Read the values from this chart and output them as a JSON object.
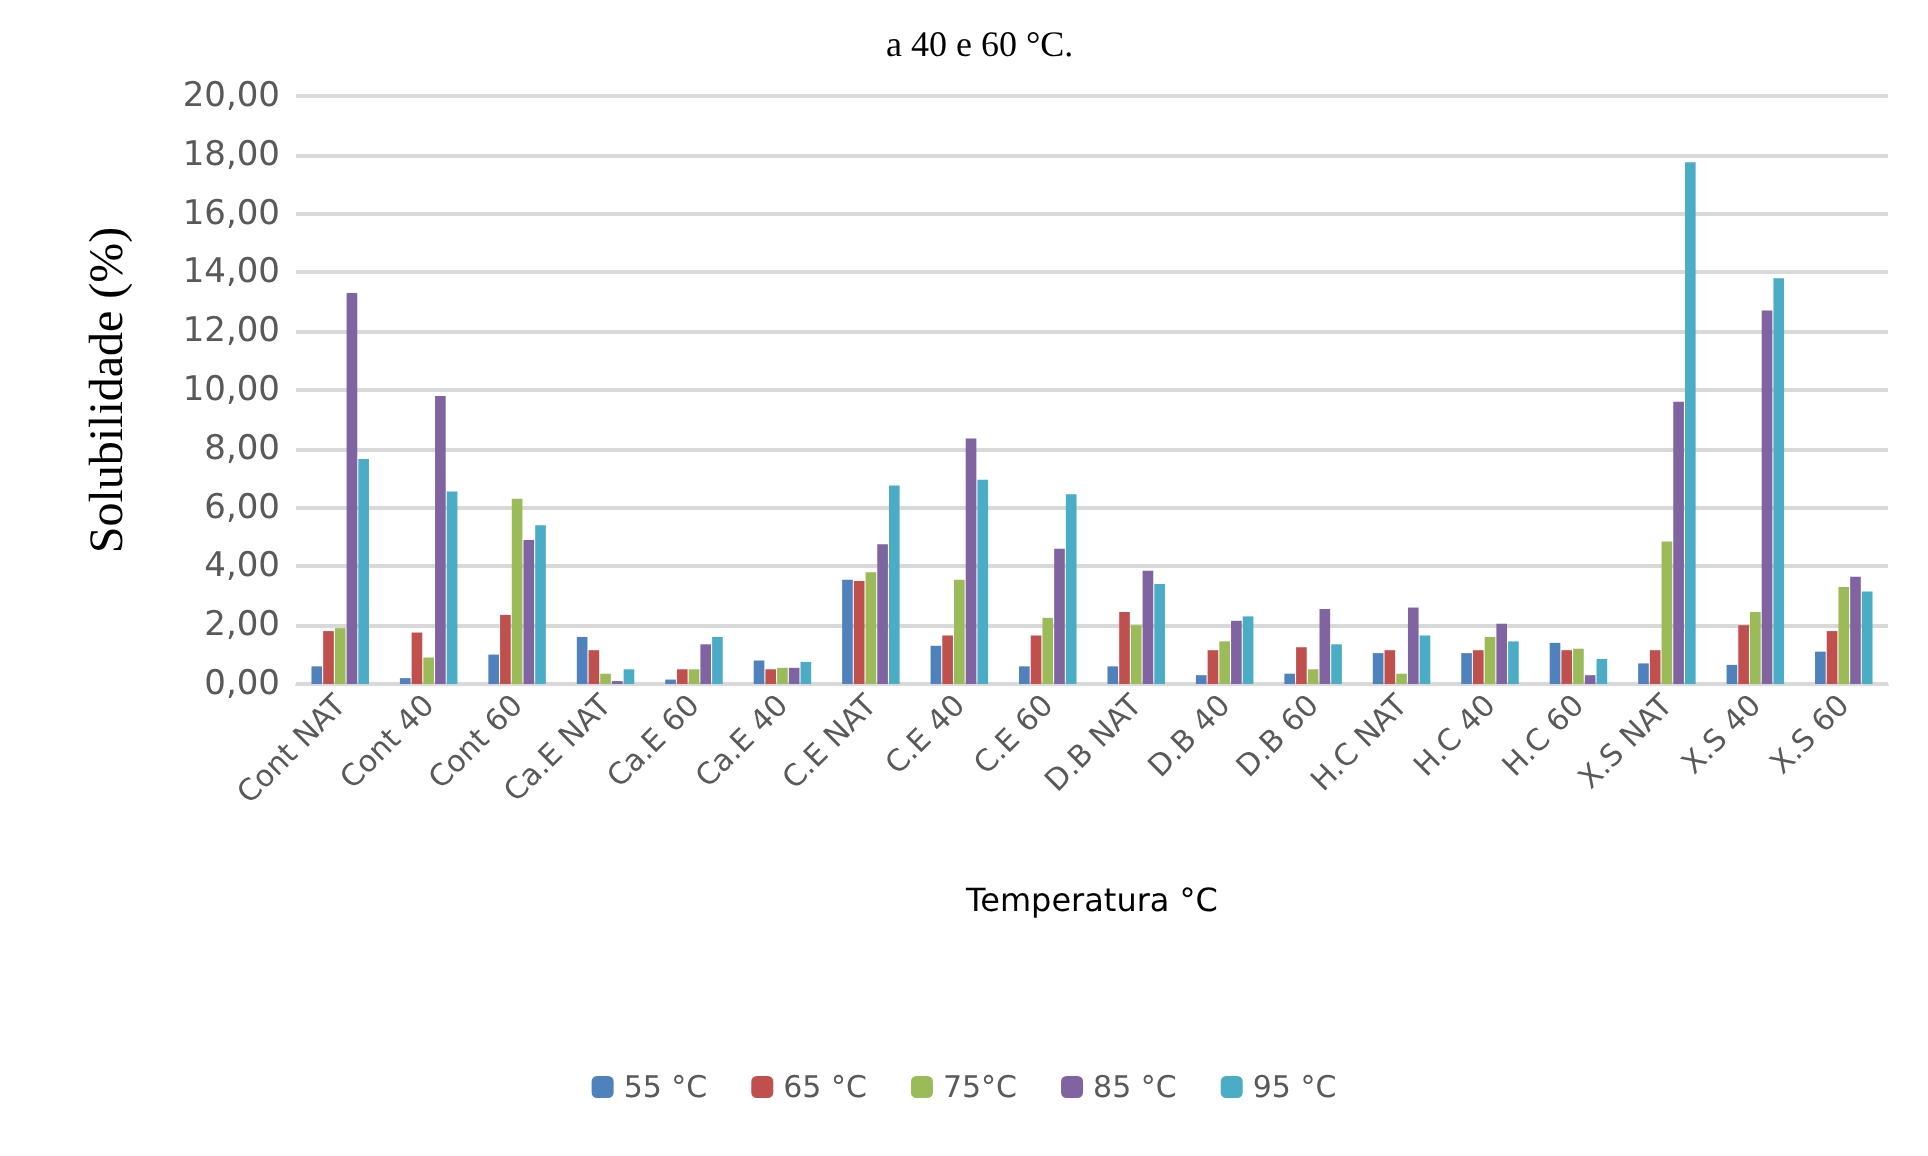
{
  "chart_data": {
    "type": "bar",
    "title": "a 40 e 60 °C.",
    "xlabel": "Temperatura °C",
    "ylabel": "Solubilidade (%)",
    "categories": [
      "Cont NAT",
      "Cont 40",
      "Cont 60",
      "Ca.E NAT",
      "Ca.E 60",
      "Ca.E 40",
      "C.E NAT",
      "C.E 40",
      "C.E 60",
      "D.B NAT",
      "D.B 40",
      "D.B 60",
      "H.C NAT",
      "H.C 40",
      "H.C 60",
      "X.S NAT",
      "X.S 40",
      "X.S 60"
    ],
    "series": [
      {
        "name": "55 °C",
        "color": "#4f81bd",
        "values": [
          0.6,
          0.2,
          1.0,
          1.6,
          0.15,
          0.8,
          3.55,
          1.3,
          0.6,
          0.6,
          0.3,
          0.35,
          1.05,
          1.05,
          1.4,
          0.7,
          0.65,
          1.1
        ]
      },
      {
        "name": "65 °C",
        "color": "#c0504d",
        "values": [
          1.8,
          1.75,
          2.35,
          1.15,
          0.5,
          0.5,
          3.5,
          1.65,
          1.65,
          2.45,
          1.15,
          1.25,
          1.15,
          1.15,
          1.15,
          1.15,
          2.0,
          1.8
        ]
      },
      {
        "name": "75°C",
        "color": "#9bbb59",
        "values": [
          1.9,
          0.9,
          6.3,
          0.35,
          0.5,
          0.55,
          3.8,
          3.55,
          2.25,
          2.0,
          1.45,
          0.5,
          0.35,
          1.6,
          1.2,
          4.85,
          2.45,
          3.3
        ]
      },
      {
        "name": "85 °C",
        "color": "#8064a2",
        "values": [
          13.3,
          9.8,
          4.9,
          0.1,
          1.35,
          0.55,
          4.75,
          8.35,
          4.6,
          3.85,
          2.15,
          2.55,
          2.6,
          2.05,
          0.3,
          9.6,
          12.7,
          3.65
        ]
      },
      {
        "name": "95 °C",
        "color": "#4bacc6",
        "values": [
          7.65,
          6.55,
          5.4,
          0.5,
          1.6,
          0.75,
          6.75,
          6.95,
          6.45,
          3.4,
          2.3,
          1.35,
          1.65,
          1.45,
          0.85,
          17.75,
          13.8,
          3.15
        ]
      }
    ],
    "ylim": [
      0,
      20
    ],
    "yticks": [
      {
        "value": 0,
        "label": "0,00"
      },
      {
        "value": 2,
        "label": "2,00"
      },
      {
        "value": 4,
        "label": "4,00"
      },
      {
        "value": 6,
        "label": "6,00"
      },
      {
        "value": 8,
        "label": "8,00"
      },
      {
        "value": 10,
        "label": "10,00"
      },
      {
        "value": 12,
        "label": "12,00"
      },
      {
        "value": 14,
        "label": "14,00"
      },
      {
        "value": 16,
        "label": "16,00"
      },
      {
        "value": 18,
        "label": "18,00"
      },
      {
        "value": 20,
        "label": "20,00"
      }
    ],
    "grid": "y",
    "legend": "bottom"
  }
}
